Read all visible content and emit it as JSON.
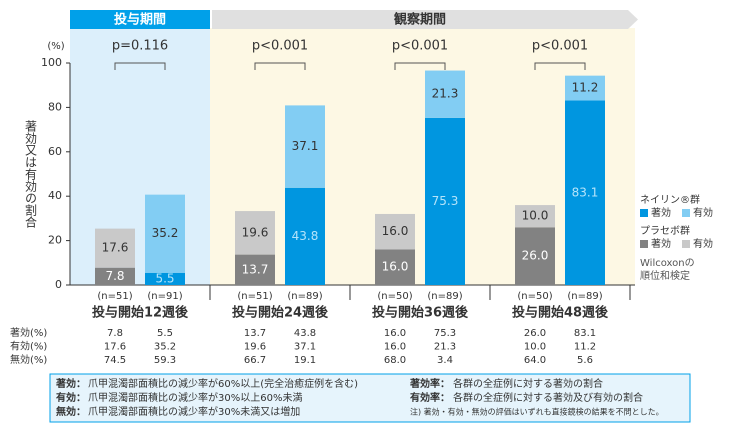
{
  "header": {
    "treatment": "投与期間",
    "observation": "観察期間"
  },
  "chart_data": {
    "type": "grouped_stacked_bar",
    "y_label": "著効又は有効の割合",
    "y_unit": "(%)",
    "categories": [
      "投与開始12週後",
      "投与開始24週後",
      "投与開始36週後",
      "投与開始48週後"
    ],
    "p_values": [
      "p=0.116",
      "p<0.001",
      "p<0.001",
      "p<0.001"
    ],
    "ylim": [
      0,
      100
    ],
    "yticks": [
      0,
      20,
      40,
      60,
      80,
      100
    ],
    "groups": [
      {
        "name": "プラセボ群",
        "n_labels": [
          "(n=51)",
          "(n=51)",
          "(n=50)",
          "(n=50)"
        ],
        "series": [
          {
            "name": "著効",
            "color": "#828282",
            "values": [
              7.8,
              13.7,
              16,
              26
            ],
            "value_labels": [
              "7.8",
              "13.7",
              "16.0",
              "26.0"
            ]
          },
          {
            "name": "有効",
            "color": "#c9c9c9",
            "values": [
              17.6,
              19.6,
              16,
              10
            ],
            "value_labels": [
              "17.6",
              "19.6",
              "16.0",
              "10.0"
            ]
          }
        ]
      },
      {
        "name": "ネイリン®群",
        "n_labels": [
          "(n=91)",
          "(n=89)",
          "(n=89)",
          "(n=89)"
        ],
        "series": [
          {
            "name": "著効",
            "color": "#0096e0",
            "values": [
              5.5,
              43.8,
              75.3,
              83.1
            ],
            "value_labels": [
              "5.5",
              "43.8",
              "75.3",
              "83.1"
            ]
          },
          {
            "name": "有効",
            "color": "#82cdf3",
            "values": [
              35.2,
              37.1,
              21.3,
              11.2
            ],
            "value_labels": [
              "35.2",
              "37.1",
              "21.3",
              "11.2"
            ]
          }
        ]
      }
    ],
    "test_note": [
      "Wilcoxonの",
      "順位和検定"
    ]
  },
  "table": {
    "row_headers": [
      "著効(%)",
      "有効(%)",
      "無効(%)"
    ],
    "rows": [
      [
        "7.8",
        "5.5",
        "13.7",
        "43.8",
        "16.0",
        "75.3",
        "26.0",
        "83.1"
      ],
      [
        "17.6",
        "35.2",
        "19.6",
        "37.1",
        "16.0",
        "21.3",
        "10.0",
        "11.2"
      ],
      [
        "74.5",
        "59.3",
        "66.7",
        "19.1",
        "68.0",
        "3.4",
        "64.0",
        "5.6"
      ]
    ]
  },
  "footnote": {
    "left": [
      {
        "term": "著効：",
        "text": "爪甲混濁部面積比の減少率が60%以上(完全治癒症例を含む)"
      },
      {
        "term": "有効：",
        "text": "爪甲混濁部面積比の減少率が30%以上60%未満"
      },
      {
        "term": "無効：",
        "text": "爪甲混濁部面積比の減少率が30%未満又は増加"
      }
    ],
    "right": [
      {
        "term": "著効率：",
        "text": "各群の全症例に対する著効の割合"
      },
      {
        "term": "有効率：",
        "text": "各群の全症例に対する著効及び有効の割合"
      }
    ],
    "note": "注) 著効・有効・無効の評価はいずれも直接鏡検の結果を不問とした。"
  }
}
